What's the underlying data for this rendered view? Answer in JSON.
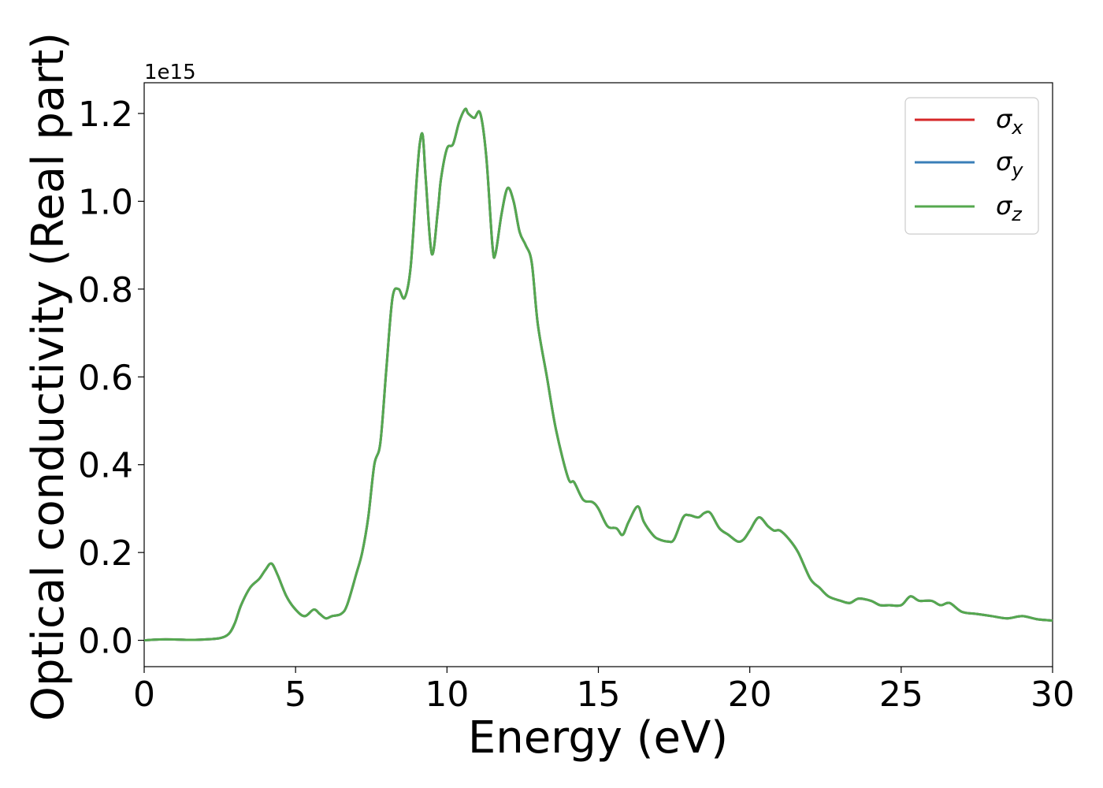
{
  "chart_data": {
    "type": "line",
    "title": "",
    "xlabel": "Energy (eV)",
    "ylabel": "Optical conductivity (Real part)",
    "offset_label": "1e15",
    "xlim": [
      0,
      30
    ],
    "ylim": [
      -0.06,
      1.27
    ],
    "y_scale_factor": 1000000000000000.0,
    "x_ticks": [
      0,
      5,
      10,
      15,
      20,
      25,
      30
    ],
    "y_ticks": [
      0.0,
      0.2,
      0.4,
      0.6,
      0.8,
      1.0,
      1.2
    ],
    "x_tick_labels": [
      "0",
      "5",
      "10",
      "15",
      "20",
      "25",
      "30"
    ],
    "y_tick_labels": [
      "0.0",
      "0.2",
      "0.4",
      "0.6",
      "0.8",
      "1.0",
      "1.2"
    ],
    "grid": false,
    "legend_position": "top-right",
    "x": [
      0,
      0.5,
      1.0,
      1.5,
      2.0,
      2.5,
      2.8,
      3.0,
      3.2,
      3.5,
      3.8,
      4.0,
      4.2,
      4.4,
      4.7,
      5.0,
      5.3,
      5.6,
      5.8,
      6.0,
      6.2,
      6.5,
      6.7,
      7.0,
      7.2,
      7.4,
      7.6,
      7.8,
      8.0,
      8.2,
      8.4,
      8.6,
      8.8,
      9.0,
      9.1,
      9.2,
      9.3,
      9.5,
      9.7,
      9.8,
      10.0,
      10.2,
      10.4,
      10.6,
      10.7,
      10.9,
      11.1,
      11.3,
      11.5,
      11.6,
      11.8,
      12.0,
      12.2,
      12.4,
      12.6,
      12.8,
      13.0,
      13.3,
      13.6,
      14.0,
      14.2,
      14.5,
      14.8,
      15.0,
      15.3,
      15.6,
      15.8,
      16.0,
      16.3,
      16.5,
      16.8,
      17.0,
      17.3,
      17.5,
      17.8,
      18.0,
      18.3,
      18.5,
      18.7,
      19.0,
      19.3,
      19.6,
      19.8,
      20.0,
      20.3,
      20.6,
      20.8,
      21.0,
      21.3,
      21.6,
      22.0,
      22.3,
      22.6,
      23.0,
      23.3,
      23.6,
      24.0,
      24.3,
      24.6,
      25.0,
      25.3,
      25.6,
      26.0,
      26.3,
      26.6,
      27.0,
      27.5,
      28.0,
      28.5,
      29.0,
      29.5,
      30.0
    ],
    "series": [
      {
        "name": "σx",
        "color": "#d62728",
        "values": [
          0.0,
          0.002,
          0.002,
          0.001,
          0.002,
          0.005,
          0.015,
          0.04,
          0.08,
          0.12,
          0.14,
          0.16,
          0.175,
          0.15,
          0.1,
          0.07,
          0.055,
          0.07,
          0.06,
          0.05,
          0.055,
          0.06,
          0.08,
          0.15,
          0.2,
          0.28,
          0.4,
          0.45,
          0.62,
          0.78,
          0.8,
          0.78,
          0.85,
          1.05,
          1.13,
          1.15,
          1.05,
          0.88,
          0.98,
          1.05,
          1.12,
          1.13,
          1.18,
          1.21,
          1.2,
          1.19,
          1.2,
          1.1,
          0.9,
          0.88,
          0.97,
          1.03,
          1.0,
          0.93,
          0.9,
          0.86,
          0.72,
          0.6,
          0.48,
          0.37,
          0.36,
          0.32,
          0.315,
          0.3,
          0.26,
          0.255,
          0.24,
          0.27,
          0.305,
          0.27,
          0.24,
          0.23,
          0.225,
          0.23,
          0.28,
          0.285,
          0.28,
          0.29,
          0.29,
          0.255,
          0.24,
          0.225,
          0.23,
          0.25,
          0.28,
          0.26,
          0.25,
          0.25,
          0.23,
          0.2,
          0.14,
          0.12,
          0.1,
          0.09,
          0.085,
          0.095,
          0.09,
          0.08,
          0.08,
          0.08,
          0.1,
          0.09,
          0.09,
          0.08,
          0.085,
          0.065,
          0.06,
          0.055,
          0.05,
          0.055,
          0.048,
          0.045
        ]
      },
      {
        "name": "σy",
        "color": "#3a7fb8",
        "values": [
          0.0,
          0.002,
          0.002,
          0.001,
          0.002,
          0.005,
          0.015,
          0.04,
          0.08,
          0.12,
          0.14,
          0.16,
          0.175,
          0.15,
          0.1,
          0.07,
          0.055,
          0.07,
          0.06,
          0.05,
          0.055,
          0.06,
          0.08,
          0.15,
          0.2,
          0.28,
          0.4,
          0.45,
          0.62,
          0.78,
          0.8,
          0.78,
          0.85,
          1.05,
          1.13,
          1.15,
          1.05,
          0.88,
          0.98,
          1.05,
          1.12,
          1.13,
          1.18,
          1.21,
          1.2,
          1.19,
          1.2,
          1.1,
          0.9,
          0.88,
          0.97,
          1.03,
          1.0,
          0.93,
          0.9,
          0.86,
          0.72,
          0.6,
          0.48,
          0.37,
          0.36,
          0.32,
          0.315,
          0.3,
          0.26,
          0.255,
          0.24,
          0.27,
          0.305,
          0.27,
          0.24,
          0.23,
          0.225,
          0.23,
          0.28,
          0.285,
          0.28,
          0.29,
          0.29,
          0.255,
          0.24,
          0.225,
          0.23,
          0.25,
          0.28,
          0.26,
          0.25,
          0.25,
          0.23,
          0.2,
          0.14,
          0.12,
          0.1,
          0.09,
          0.085,
          0.095,
          0.09,
          0.08,
          0.08,
          0.08,
          0.1,
          0.09,
          0.09,
          0.08,
          0.085,
          0.065,
          0.06,
          0.055,
          0.05,
          0.055,
          0.048,
          0.045
        ]
      },
      {
        "name": "σz",
        "color": "#55a84f",
        "values": [
          0.0,
          0.002,
          0.002,
          0.001,
          0.002,
          0.005,
          0.015,
          0.04,
          0.08,
          0.12,
          0.14,
          0.16,
          0.175,
          0.15,
          0.1,
          0.07,
          0.055,
          0.07,
          0.06,
          0.05,
          0.055,
          0.06,
          0.08,
          0.15,
          0.2,
          0.28,
          0.4,
          0.45,
          0.62,
          0.78,
          0.8,
          0.78,
          0.85,
          1.05,
          1.13,
          1.15,
          1.05,
          0.88,
          0.98,
          1.05,
          1.12,
          1.13,
          1.18,
          1.21,
          1.2,
          1.19,
          1.2,
          1.1,
          0.9,
          0.88,
          0.97,
          1.03,
          1.0,
          0.93,
          0.9,
          0.86,
          0.72,
          0.6,
          0.48,
          0.37,
          0.36,
          0.32,
          0.315,
          0.3,
          0.26,
          0.255,
          0.24,
          0.27,
          0.305,
          0.27,
          0.24,
          0.23,
          0.225,
          0.23,
          0.28,
          0.285,
          0.28,
          0.29,
          0.29,
          0.255,
          0.24,
          0.225,
          0.23,
          0.25,
          0.28,
          0.26,
          0.25,
          0.25,
          0.23,
          0.2,
          0.14,
          0.12,
          0.1,
          0.09,
          0.085,
          0.095,
          0.09,
          0.08,
          0.08,
          0.08,
          0.1,
          0.09,
          0.09,
          0.08,
          0.085,
          0.065,
          0.06,
          0.055,
          0.05,
          0.055,
          0.048,
          0.045
        ]
      }
    ],
    "legend": [
      {
        "symbol": "σ",
        "sub": "x"
      },
      {
        "symbol": "σ",
        "sub": "y"
      },
      {
        "symbol": "σ",
        "sub": "z"
      }
    ]
  }
}
